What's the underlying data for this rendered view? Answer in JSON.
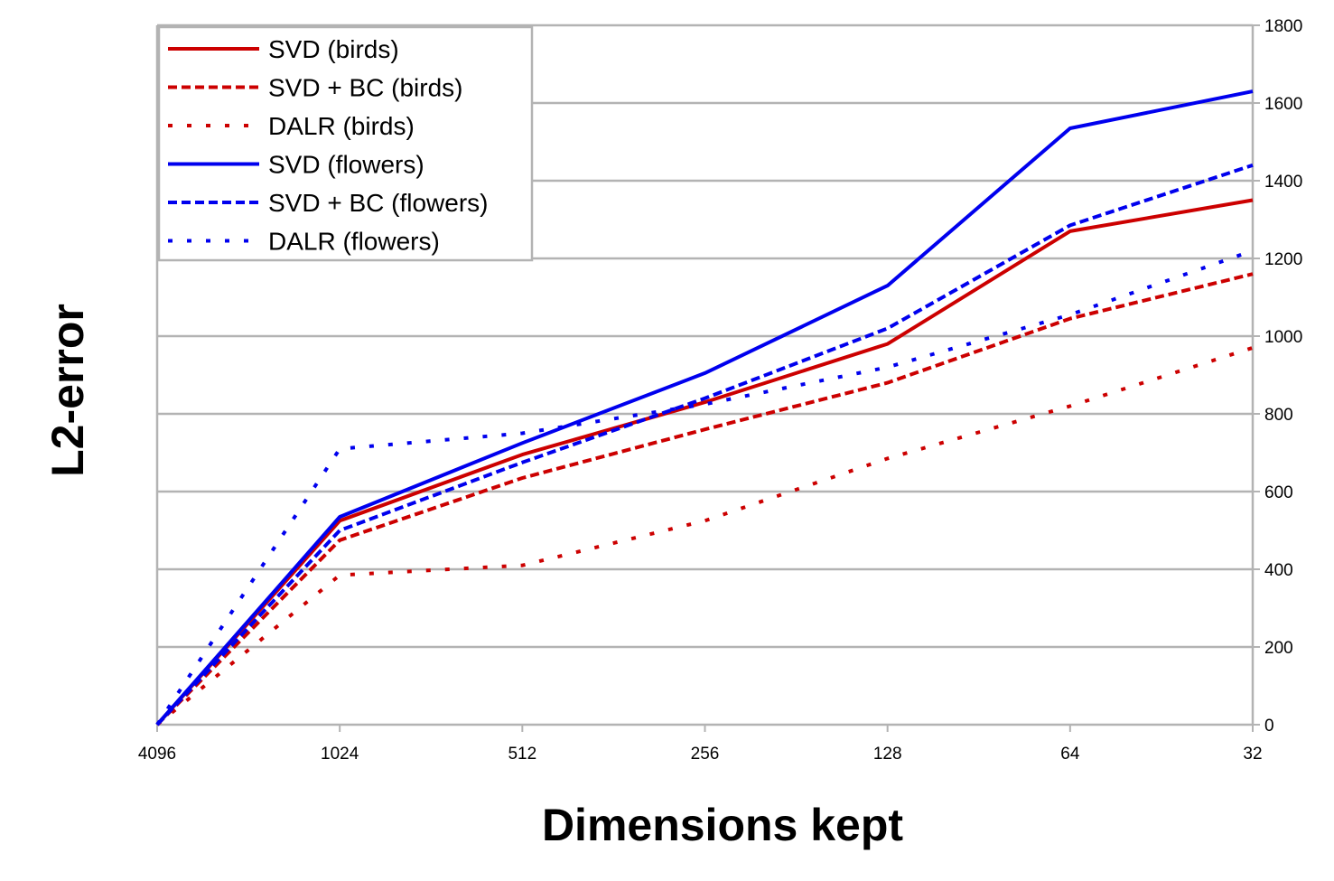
{
  "chart_data": {
    "type": "line",
    "title": "",
    "xlabel": "Dimensions kept",
    "ylabel": "L2-error",
    "categories": [
      "4096",
      "1024",
      "512",
      "256",
      "128",
      "64",
      "32"
    ],
    "ylim": [
      0,
      1800
    ],
    "yticks": [
      "0",
      "200",
      "400",
      "600",
      "800",
      "1000",
      "1200",
      "1400",
      "1600",
      "1800"
    ],
    "y_axis_side": "right",
    "grid": "horizontal",
    "legend_position": "top-left",
    "series": [
      {
        "name": "SVD (birds)",
        "color": "#cc0000",
        "style": "solid",
        "values": [
          0,
          525,
          695,
          830,
          980,
          1270,
          1350
        ]
      },
      {
        "name": "SVD + BC (birds)",
        "color": "#cc0000",
        "style": "dashed",
        "values": [
          0,
          475,
          635,
          760,
          880,
          1045,
          1160
        ]
      },
      {
        "name": "DALR (birds)",
        "color": "#cc0000",
        "style": "dotted",
        "values": [
          0,
          385,
          410,
          525,
          685,
          820,
          970
        ]
      },
      {
        "name": "SVD (flowers)",
        "color": "#0000ee",
        "style": "solid",
        "values": [
          0,
          535,
          725,
          905,
          1130,
          1535,
          1630
        ]
      },
      {
        "name": "SVD + BC (flowers)",
        "color": "#0000ee",
        "style": "dashed",
        "values": [
          0,
          500,
          675,
          840,
          1020,
          1285,
          1440
        ]
      },
      {
        "name": "DALR (flowers)",
        "color": "#0000ee",
        "style": "dotted",
        "values": [
          0,
          710,
          750,
          825,
          920,
          1055,
          1220
        ]
      }
    ]
  }
}
